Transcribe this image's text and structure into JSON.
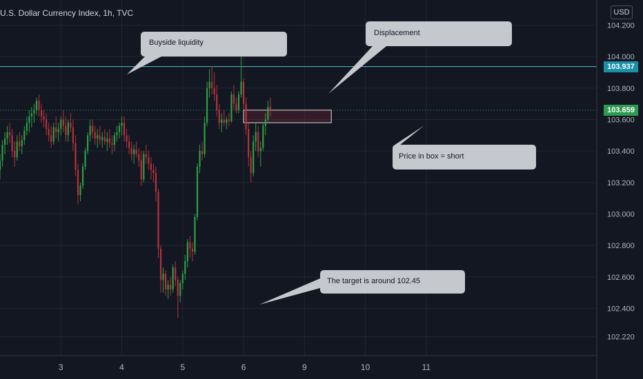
{
  "header": {
    "title": "U.S. Dollar Currency Index, 1h, TVC",
    "currency": "USD"
  },
  "chart_data": {
    "type": "candlestick",
    "ylim": [
      102.1,
      104.36
    ],
    "xlim": [
      2.0,
      11.8
    ],
    "y_ticks": [
      "104.200",
      "104.000",
      "103.800",
      "103.600",
      "103.400",
      "103.200",
      "103.000",
      "102.800",
      "102.600",
      "102.400",
      "102.220"
    ],
    "y_tick_values": [
      104.2,
      104.0,
      103.8,
      103.6,
      103.4,
      103.2,
      103.0,
      102.8,
      102.6,
      102.4,
      102.22
    ],
    "x_ticks": [
      "3",
      "4",
      "5",
      "6",
      "9",
      "10",
      "11"
    ],
    "x_tick_values": [
      3,
      4,
      5,
      6,
      7,
      8,
      9
    ],
    "candles": [
      [
        2.0,
        103.28,
        103.38,
        103.22,
        103.34
      ],
      [
        2.04,
        103.34,
        103.47,
        103.3,
        103.44
      ],
      [
        2.08,
        103.44,
        103.52,
        103.38,
        103.48
      ],
      [
        2.12,
        103.48,
        103.56,
        103.44,
        103.52
      ],
      [
        2.16,
        103.52,
        103.58,
        103.45,
        103.5
      ],
      [
        2.2,
        103.5,
        103.54,
        103.36,
        103.4
      ],
      [
        2.24,
        103.4,
        103.46,
        103.3,
        103.36
      ],
      [
        2.28,
        103.36,
        103.5,
        103.34,
        103.46
      ],
      [
        2.32,
        103.46,
        103.52,
        103.4,
        103.43
      ],
      [
        2.36,
        103.43,
        103.5,
        103.38,
        103.47
      ],
      [
        2.4,
        103.47,
        103.56,
        103.44,
        103.53
      ],
      [
        2.44,
        103.53,
        103.62,
        103.5,
        103.58
      ],
      [
        2.48,
        103.58,
        103.66,
        103.52,
        103.62
      ],
      [
        2.52,
        103.62,
        103.68,
        103.55,
        103.64
      ],
      [
        2.56,
        103.64,
        103.7,
        103.58,
        103.66
      ],
      [
        2.6,
        103.66,
        103.74,
        103.63,
        103.72
      ],
      [
        2.64,
        103.72,
        103.76,
        103.62,
        103.66
      ],
      [
        2.68,
        103.66,
        103.7,
        103.58,
        103.62
      ],
      [
        2.72,
        103.62,
        103.66,
        103.55,
        103.6
      ],
      [
        2.76,
        103.6,
        103.64,
        103.5,
        103.54
      ],
      [
        2.8,
        103.54,
        103.58,
        103.46,
        103.5
      ],
      [
        2.84,
        103.5,
        103.56,
        103.42,
        103.46
      ],
      [
        2.88,
        103.46,
        103.58,
        103.44,
        103.55
      ],
      [
        2.92,
        103.55,
        103.62,
        103.48,
        103.52
      ],
      [
        2.96,
        103.52,
        103.58,
        103.46,
        103.54
      ],
      [
        3.0,
        103.54,
        103.62,
        103.5,
        103.6
      ],
      [
        3.04,
        103.6,
        103.66,
        103.52,
        103.56
      ],
      [
        3.08,
        103.56,
        103.62,
        103.46,
        103.5
      ],
      [
        3.12,
        103.5,
        103.6,
        103.46,
        103.58
      ],
      [
        3.16,
        103.58,
        103.64,
        103.52,
        103.55
      ],
      [
        3.2,
        103.55,
        103.6,
        103.4,
        103.45
      ],
      [
        3.24,
        103.45,
        103.5,
        103.24,
        103.28
      ],
      [
        3.28,
        103.28,
        103.32,
        103.06,
        103.12
      ],
      [
        3.32,
        103.12,
        103.2,
        103.08,
        103.18
      ],
      [
        3.36,
        103.18,
        103.32,
        103.16,
        103.3
      ],
      [
        3.4,
        103.3,
        103.42,
        103.28,
        103.4
      ],
      [
        3.44,
        103.4,
        103.52,
        103.38,
        103.5
      ],
      [
        3.48,
        103.5,
        103.6,
        103.46,
        103.56
      ],
      [
        3.52,
        103.56,
        103.6,
        103.48,
        103.52
      ],
      [
        3.56,
        103.52,
        103.56,
        103.44,
        103.48
      ],
      [
        3.6,
        103.48,
        103.54,
        103.42,
        103.5
      ],
      [
        3.64,
        103.5,
        103.56,
        103.44,
        103.47
      ],
      [
        3.68,
        103.47,
        103.52,
        103.42,
        103.49
      ],
      [
        3.72,
        103.49,
        103.54,
        103.44,
        103.46
      ],
      [
        3.76,
        103.46,
        103.52,
        103.4,
        103.48
      ],
      [
        3.8,
        103.48,
        103.54,
        103.42,
        103.45
      ],
      [
        3.84,
        103.45,
        103.5,
        103.38,
        103.44
      ],
      [
        3.88,
        103.44,
        103.52,
        103.4,
        103.5
      ],
      [
        3.92,
        103.5,
        103.56,
        103.46,
        103.52
      ],
      [
        3.96,
        103.52,
        103.58,
        103.48,
        103.56
      ],
      [
        4.0,
        103.56,
        103.62,
        103.5,
        103.58
      ],
      [
        4.04,
        103.58,
        103.62,
        103.46,
        103.5
      ],
      [
        4.08,
        103.5,
        103.54,
        103.42,
        103.46
      ],
      [
        4.12,
        103.46,
        103.5,
        103.38,
        103.42
      ],
      [
        4.16,
        103.42,
        103.46,
        103.34,
        103.38
      ],
      [
        4.2,
        103.38,
        103.44,
        103.32,
        103.41
      ],
      [
        4.24,
        103.41,
        103.46,
        103.36,
        103.38
      ],
      [
        4.28,
        103.38,
        103.42,
        103.3,
        103.34
      ],
      [
        4.32,
        103.34,
        103.4,
        103.18,
        103.22
      ],
      [
        4.36,
        103.22,
        103.4,
        103.2,
        103.38
      ],
      [
        4.4,
        103.38,
        103.44,
        103.32,
        103.36
      ],
      [
        4.44,
        103.36,
        103.4,
        103.28,
        103.32
      ],
      [
        4.48,
        103.32,
        103.36,
        103.22,
        103.28
      ],
      [
        4.52,
        103.28,
        103.32,
        103.2,
        103.26
      ],
      [
        4.56,
        103.26,
        103.3,
        103.08,
        103.14
      ],
      [
        4.6,
        103.14,
        103.16,
        102.72,
        102.78
      ],
      [
        4.64,
        102.78,
        102.8,
        102.5,
        102.58
      ],
      [
        4.68,
        102.58,
        102.66,
        102.5,
        102.62
      ],
      [
        4.72,
        102.62,
        102.64,
        102.48,
        102.52
      ],
      [
        4.76,
        102.52,
        102.58,
        102.46,
        102.55
      ],
      [
        4.8,
        102.55,
        102.6,
        102.48,
        102.52
      ],
      [
        4.84,
        102.52,
        102.68,
        102.5,
        102.66
      ],
      [
        4.88,
        102.66,
        102.7,
        102.54,
        102.58
      ],
      [
        4.92,
        102.58,
        102.6,
        102.34,
        102.48
      ],
      [
        4.96,
        102.48,
        102.58,
        102.44,
        102.56
      ],
      [
        5.0,
        102.56,
        102.64,
        102.52,
        102.62
      ],
      [
        5.04,
        102.62,
        102.74,
        102.58,
        102.7
      ],
      [
        5.08,
        102.7,
        102.84,
        102.66,
        102.82
      ],
      [
        5.12,
        102.82,
        102.86,
        102.72,
        102.78
      ],
      [
        5.16,
        102.78,
        102.82,
        102.7,
        102.76
      ],
      [
        5.2,
        102.76,
        103.0,
        102.74,
        102.98
      ],
      [
        5.24,
        102.98,
        103.32,
        102.96,
        103.3
      ],
      [
        5.28,
        103.3,
        103.44,
        103.26,
        103.4
      ],
      [
        5.32,
        103.4,
        103.46,
        103.34,
        103.38
      ],
      [
        5.36,
        103.38,
        103.62,
        103.36,
        103.58
      ],
      [
        5.4,
        103.58,
        103.84,
        103.56,
        103.8
      ],
      [
        5.44,
        103.8,
        103.92,
        103.74,
        103.84
      ],
      [
        5.48,
        103.84,
        103.94,
        103.76,
        103.8
      ],
      [
        5.52,
        103.8,
        103.9,
        103.72,
        103.76
      ],
      [
        5.56,
        103.76,
        103.82,
        103.62,
        103.66
      ],
      [
        5.6,
        103.66,
        103.7,
        103.54,
        103.58
      ],
      [
        5.64,
        103.58,
        103.64,
        103.52,
        103.6
      ],
      [
        5.68,
        103.6,
        103.66,
        103.56,
        103.58
      ],
      [
        5.72,
        103.58,
        103.62,
        103.54,
        103.6
      ],
      [
        5.76,
        103.6,
        103.64,
        103.56,
        103.59
      ],
      [
        5.8,
        103.59,
        103.78,
        103.58,
        103.76
      ],
      [
        5.84,
        103.76,
        103.82,
        103.66,
        103.7
      ],
      [
        5.88,
        103.7,
        103.74,
        103.64,
        103.66
      ],
      [
        5.92,
        103.66,
        103.78,
        103.64,
        103.76
      ],
      [
        5.96,
        103.76,
        104.06,
        103.74,
        103.84
      ],
      [
        6.0,
        103.84,
        103.86,
        103.66,
        103.7
      ],
      [
        6.04,
        103.7,
        103.74,
        103.5,
        103.54
      ],
      [
        6.08,
        103.54,
        103.58,
        103.3,
        103.36
      ],
      [
        6.12,
        103.36,
        103.4,
        103.2,
        103.26
      ],
      [
        6.16,
        103.26,
        103.5,
        103.24,
        103.46
      ],
      [
        6.2,
        103.46,
        103.58,
        103.4,
        103.52
      ],
      [
        6.24,
        103.52,
        103.56,
        103.36,
        103.4
      ],
      [
        6.28,
        103.4,
        103.46,
        103.3,
        103.42
      ],
      [
        6.32,
        103.42,
        103.58,
        103.4,
        103.56
      ],
      [
        6.36,
        103.56,
        103.64,
        103.5,
        103.6
      ],
      [
        6.4,
        103.6,
        103.72,
        103.58,
        103.68
      ],
      [
        6.44,
        103.68,
        103.74,
        103.62,
        103.66
      ]
    ],
    "horizontal_lines": [
      {
        "y": 103.937,
        "style": "solid",
        "color": "#4fc3d7"
      },
      {
        "y": 103.659,
        "style": "dotted",
        "color": "#2ea566"
      }
    ],
    "box": {
      "x0": 6.0,
      "x1": 7.44,
      "y0": 103.58,
      "y1": 103.66
    }
  },
  "price_badges": [
    {
      "label": "103.937",
      "value": 103.937,
      "color": "#1a8fa8"
    },
    {
      "label": "103.659",
      "value": 103.659,
      "color": "#2e9a4f"
    }
  ],
  "annotations": {
    "buyside": "Buyside liquidity",
    "displacement": "Displacement",
    "price_in_box": "Price in box = short",
    "target": "The target is around 102.45"
  },
  "colors": {
    "up": "#26a69a",
    "down": "#ef5350",
    "up_candle": "#2ea043",
    "down_candle": "#b8323a",
    "grid": "#232632",
    "bg": "#131722"
  }
}
